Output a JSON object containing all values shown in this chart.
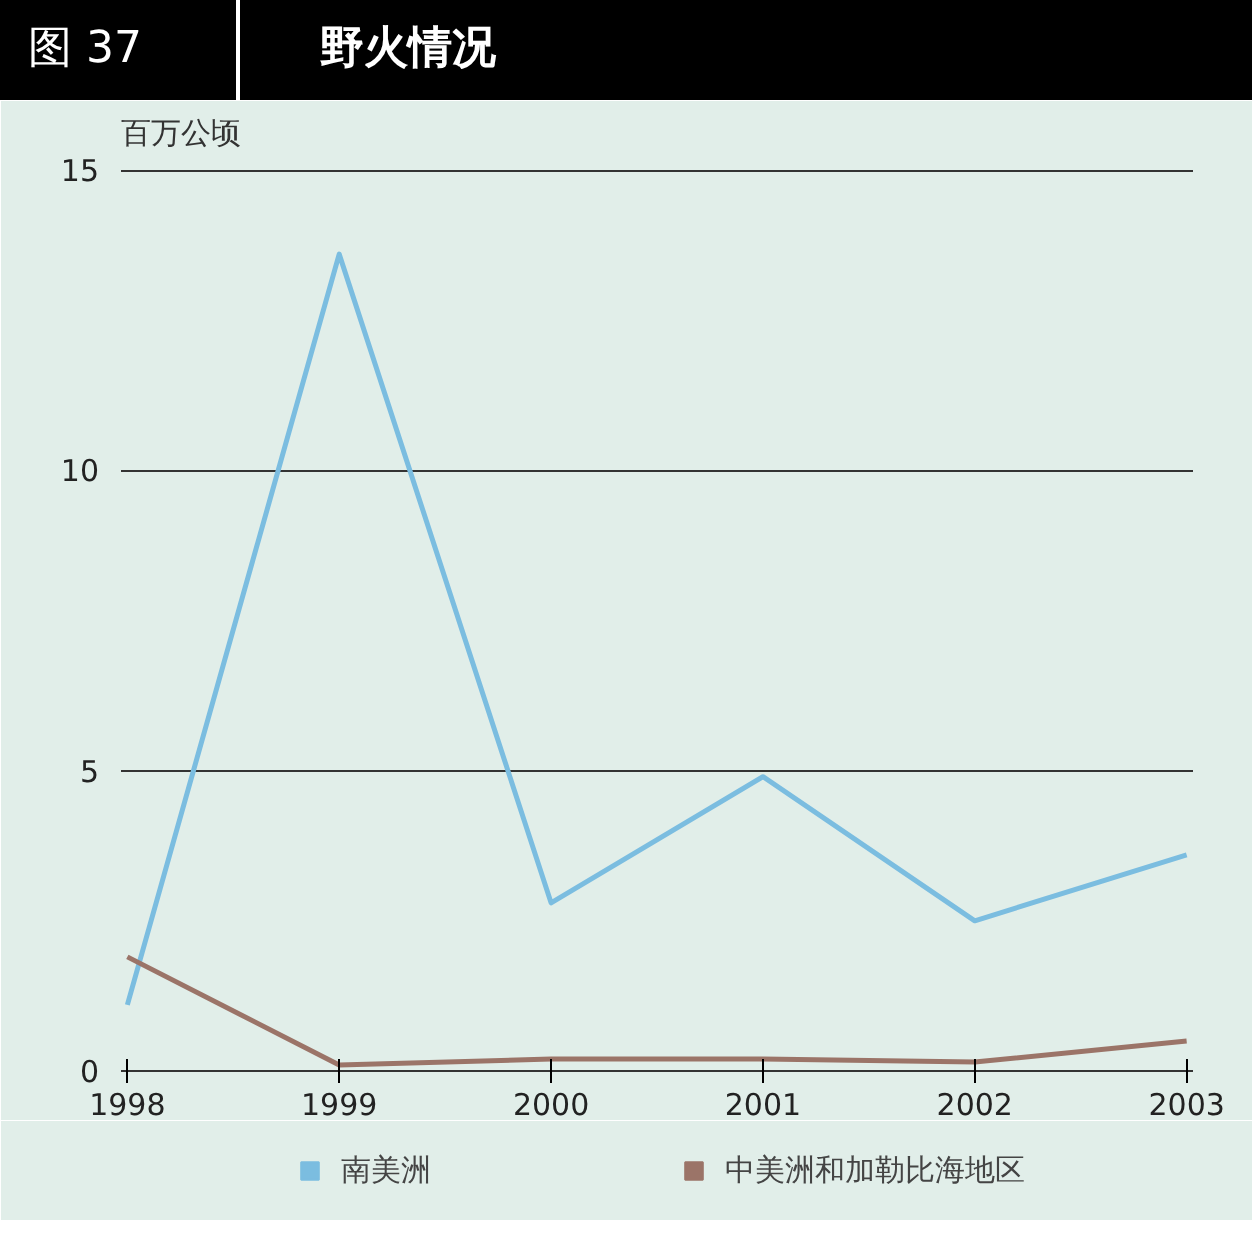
{
  "chart_data": {
    "type": "line",
    "title": "野火情况",
    "annotations": [
      "图 37"
    ],
    "ylabel": "百万公顷",
    "x": [
      1998,
      1999,
      2000,
      2001,
      2002,
      2003
    ],
    "series": [
      {
        "name": "南美洲",
        "color": "#7bbde0",
        "values": [
          1.1,
          13.6,
          2.8,
          4.9,
          2.5,
          3.6
        ]
      },
      {
        "name": "中美洲和加勒比海地区",
        "color": "#9b7468",
        "values": [
          1.9,
          0.1,
          0.2,
          0.2,
          0.15,
          0.5
        ]
      }
    ],
    "xlim": [
      1998,
      2003
    ],
    "xticks": [
      1998,
      1999,
      2000,
      2001,
      2002,
      2003
    ],
    "ylim": [
      0,
      15
    ],
    "yticks": [
      0,
      5,
      10,
      15
    ],
    "grid": "y",
    "legend": "bottom",
    "marker": "none",
    "line_style": "solid"
  }
}
